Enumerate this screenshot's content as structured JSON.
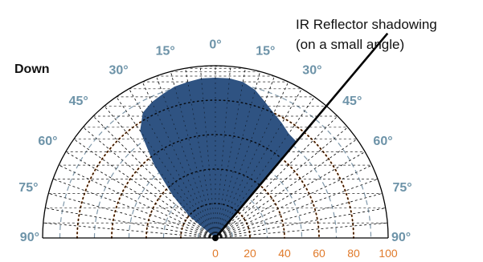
{
  "chart_data": {
    "type": "polar",
    "title": "",
    "direction_label": "Down",
    "angle_ticks": [
      {
        "angle": -90,
        "label": "90°"
      },
      {
        "angle": -75,
        "label": "75°"
      },
      {
        "angle": -60,
        "label": "60°"
      },
      {
        "angle": -45,
        "label": "45°"
      },
      {
        "angle": -30,
        "label": "30°"
      },
      {
        "angle": -15,
        "label": "15°"
      },
      {
        "angle": 0,
        "label": "0°"
      },
      {
        "angle": 15,
        "label": "15°"
      },
      {
        "angle": 30,
        "label": "30°"
      },
      {
        "angle": 45,
        "label": "45°"
      },
      {
        "angle": 60,
        "label": "60°"
      },
      {
        "angle": 75,
        "label": "75°"
      },
      {
        "angle": 90,
        "label": "90°"
      }
    ],
    "radial_ticks": [
      "0",
      "20",
      "40",
      "60",
      "80",
      "100"
    ],
    "radial_range": [
      0,
      100
    ],
    "series": [
      {
        "name": "",
        "color": "#2f5382",
        "points": [
          {
            "angle": -60,
            "r": 0
          },
          {
            "angle": -50,
            "r": 20
          },
          {
            "angle": -45,
            "r": 35
          },
          {
            "angle": -40,
            "r": 55
          },
          {
            "angle": -35,
            "r": 76
          },
          {
            "angle": -30,
            "r": 84
          },
          {
            "angle": -25,
            "r": 87
          },
          {
            "angle": -20,
            "r": 89
          },
          {
            "angle": -15,
            "r": 91
          },
          {
            "angle": -10,
            "r": 92
          },
          {
            "angle": -5,
            "r": 93
          },
          {
            "angle": 0,
            "r": 93
          },
          {
            "angle": 5,
            "r": 93
          },
          {
            "angle": 10,
            "r": 92
          },
          {
            "angle": 15,
            "r": 89
          },
          {
            "angle": 20,
            "r": 84
          },
          {
            "angle": 25,
            "r": 80
          },
          {
            "angle": 30,
            "r": 77
          },
          {
            "angle": 35,
            "r": 74
          },
          {
            "angle": 40,
            "r": 73
          }
        ]
      }
    ],
    "annotation": {
      "lines": [
        "IR Reflector shadowing",
        "(on a small angle)"
      ],
      "angle": 40
    },
    "colors": {
      "fill": "#2f5382",
      "angle_labels": "#6d93a8",
      "radial_labels": "#e07a2a",
      "radial_grid": "#e07a2a",
      "mid_grid": "#7f98aa"
    }
  }
}
